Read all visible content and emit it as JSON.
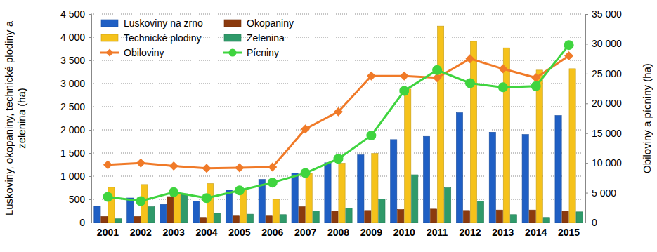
{
  "chart_data": {
    "type": "bar",
    "y_label": "Luskoviny, okopaniny, technické plodiny a zelenina (ha)",
    "y2_label": "Obiloviny a pícniny (ha)",
    "categories": [
      "2001",
      "2002",
      "2003",
      "2004",
      "2005",
      "2006",
      "2007",
      "2008",
      "2009",
      "2010",
      "2011",
      "2012",
      "2013",
      "2014",
      "2015"
    ],
    "series": [
      {
        "name": "Luskoviny na zrno",
        "type": "bar",
        "color": "#1f5fc4",
        "values": [
          350,
          530,
          390,
          460,
          700,
          930,
          1070,
          1290,
          1460,
          1790,
          1860,
          2370,
          1950,
          1900,
          2310
        ]
      },
      {
        "name": "Okopaniny",
        "type": "bar",
        "color": "#8b3a0e",
        "values": [
          130,
          130,
          560,
          110,
          140,
          140,
          340,
          250,
          260,
          280,
          290,
          260,
          270,
          270,
          250
        ]
      },
      {
        "name": "Technické plodiny",
        "type": "bar",
        "color": "#f5c21b",
        "values": [
          760,
          820,
          620,
          840,
          720,
          500,
          1060,
          1280,
          1490,
          2880,
          4240,
          3910,
          3770,
          3290,
          3320
        ]
      },
      {
        "name": "Zelenina",
        "type": "bar",
        "color": "#2f9a6a",
        "values": [
          80,
          340,
          620,
          200,
          180,
          170,
          250,
          310,
          510,
          1030,
          750,
          460,
          170,
          110,
          230
        ]
      },
      {
        "name": "Obiloviny",
        "type": "line",
        "axis": "y2",
        "color": "#f07a28",
        "marker": "diamond",
        "values": [
          9700,
          10000,
          9500,
          9100,
          9200,
          9300,
          15700,
          18600,
          24600,
          24600,
          24300,
          27500,
          25800,
          24300,
          28000
        ]
      },
      {
        "name": "Pícniny",
        "type": "line",
        "axis": "y2",
        "color": "#3fd43f",
        "marker": "circle",
        "values": [
          4300,
          3600,
          5100,
          4100,
          5400,
          6700,
          8300,
          10700,
          14600,
          22100,
          25600,
          23400,
          22700,
          22900,
          29800
        ]
      }
    ],
    "ylim": [
      0,
      4500
    ],
    "yticks": [
      0,
      500,
      {
        "value": 1000,
        "label": "1 000"
      },
      {
        "value": 1500,
        "label": "1 500"
      },
      {
        "value": 2000,
        "label": "2 000"
      },
      {
        "value": 2500,
        "label": "2 500"
      },
      {
        "value": 3000,
        "label": "3 000"
      },
      {
        "value": 3500,
        "label": "3 500"
      },
      {
        "value": 4000,
        "label": "4 000"
      },
      {
        "value": 4500,
        "label": "4 500"
      }
    ],
    "y2lim": [
      0,
      35000
    ],
    "y2ticks": [
      0,
      {
        "value": 5000,
        "label": "5 000"
      },
      {
        "value": 10000,
        "label": "10 000"
      },
      {
        "value": 15000,
        "label": "15 000"
      },
      {
        "value": 20000,
        "label": "20 000"
      },
      {
        "value": 25000,
        "label": "25 000"
      },
      {
        "value": 30000,
        "label": "30 000"
      },
      {
        "value": 35000,
        "label": "35 000"
      }
    ],
    "grid": true,
    "legend": "upper left"
  }
}
